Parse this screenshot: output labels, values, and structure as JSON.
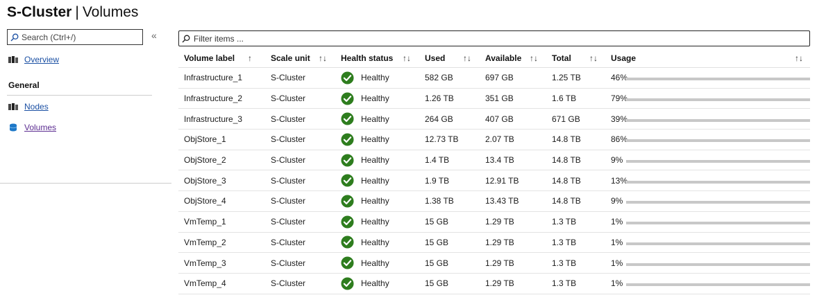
{
  "page": {
    "title": "S-Cluster",
    "separator": "|",
    "subtitle": "Volumes"
  },
  "sidebar": {
    "search_placeholder": "Search (Ctrl+/)",
    "collapse_glyph": "«",
    "overview_label": "Overview",
    "group_label": "General",
    "items": [
      {
        "label": "Nodes"
      },
      {
        "label": "Volumes"
      }
    ]
  },
  "filter": {
    "placeholder": "Filter items ..."
  },
  "table": {
    "headers": {
      "volume_label": "Volume label",
      "scale_unit": "Scale unit",
      "health_status": "Health status",
      "used": "Used",
      "available": "Available",
      "total": "Total",
      "usage": "Usage"
    },
    "sort_up_glyph": "↑",
    "sort_both_glyph": "↑↓",
    "rows": [
      {
        "volume": "Infrastructure_1",
        "scale_unit": "S-Cluster",
        "health": "Healthy",
        "used": "582 GB",
        "available": "697 GB",
        "total": "1.25 TB",
        "usage_text": "46%",
        "usage_pct": 46
      },
      {
        "volume": "Infrastructure_2",
        "scale_unit": "S-Cluster",
        "health": "Healthy",
        "used": "1.26 TB",
        "available": "351 GB",
        "total": "1.6 TB",
        "usage_text": "79%",
        "usage_pct": 79
      },
      {
        "volume": "Infrastructure_3",
        "scale_unit": "S-Cluster",
        "health": "Healthy",
        "used": "264 GB",
        "available": "407 GB",
        "total": "671 GB",
        "usage_text": "39%",
        "usage_pct": 39
      },
      {
        "volume": "ObjStore_1",
        "scale_unit": "S-Cluster",
        "health": "Healthy",
        "used": "12.73 TB",
        "available": " 2.07 TB",
        "total": "14.8 TB",
        "usage_text": "86%",
        "usage_pct": 86
      },
      {
        "volume": "ObjStore_2",
        "scale_unit": "S-Cluster",
        "health": "Healthy",
        "used": "1.4 TB",
        "available": "13.4 TB",
        "total": "14.8 TB",
        "usage_text": "9%",
        "usage_pct": 9
      },
      {
        "volume": "ObjStore_3",
        "scale_unit": "S-Cluster",
        "health": "Healthy",
        "used": "1.9 TB",
        "available": "12.91 TB",
        "total": "14.8 TB",
        "usage_text": "13%",
        "usage_pct": 13
      },
      {
        "volume": "ObjStore_4",
        "scale_unit": "S-Cluster",
        "health": "Healthy",
        "used": "1.38 TB",
        "available": "13.43 TB",
        "total": "14.8 TB",
        "usage_text": "9%",
        "usage_pct": 9
      },
      {
        "volume": "VmTemp_1",
        "scale_unit": "S-Cluster",
        "health": "Healthy",
        "used": "15 GB",
        "available": "1.29 TB",
        "total": "1.3 TB",
        "usage_text": "1%",
        "usage_pct": 1
      },
      {
        "volume": "VmTemp_2",
        "scale_unit": "S-Cluster",
        "health": "Healthy",
        "used": "15 GB",
        "available": "1.29 TB",
        "total": "1.3 TB",
        "usage_text": "1%",
        "usage_pct": 1
      },
      {
        "volume": "VmTemp_3",
        "scale_unit": "S-Cluster",
        "health": "Healthy",
        "used": "15 GB",
        "available": "1.29 TB",
        "total": "1.3 TB",
        "usage_text": "1%",
        "usage_pct": 1
      },
      {
        "volume": "VmTemp_4",
        "scale_unit": "S-Cluster",
        "health": "Healthy",
        "used": "15 GB",
        "available": "1.29 TB",
        "total": "1.3 TB",
        "usage_text": "1%",
        "usage_pct": 1
      }
    ]
  },
  "icons": {
    "search": "search-icon",
    "overview": "server-icon",
    "nodes": "server-icon",
    "volumes": "database-icon",
    "health": "checkmark-circle-icon"
  },
  "colors": {
    "healthy": "#2e7d1e",
    "usage_fill": "#0f7bcc",
    "usage_track": "#c8c8c8",
    "link": "#1a4fa3",
    "visited_link": "#5c2d91"
  }
}
